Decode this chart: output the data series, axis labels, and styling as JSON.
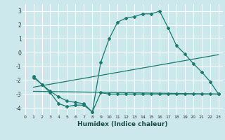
{
  "xlabel": "Humidex (Indice chaleur)",
  "bg_color": "#cce8ec",
  "grid_color": "#ffffff",
  "line_color": "#1a7a6e",
  "x_ticks": [
    0,
    1,
    2,
    3,
    4,
    5,
    6,
    7,
    8,
    9,
    10,
    11,
    12,
    13,
    14,
    15,
    16,
    17,
    18,
    19,
    20,
    21,
    22,
    23
  ],
  "ylim": [
    -4.5,
    3.5
  ],
  "xlim": [
    -0.3,
    23.5
  ],
  "yticks": [
    -4,
    -3,
    -2,
    -1,
    0,
    1,
    2,
    3
  ],
  "line1_x": [
    1,
    2,
    3,
    4,
    5,
    6,
    7,
    8,
    9,
    10,
    11,
    12,
    13,
    14,
    15,
    16,
    17,
    18,
    19,
    20,
    21,
    22,
    23
  ],
  "line1_y": [
    -1.7,
    -2.3,
    -2.8,
    -3.2,
    -3.5,
    -3.6,
    -3.7,
    -4.3,
    -0.7,
    1.0,
    2.2,
    2.5,
    2.6,
    2.8,
    2.8,
    3.0,
    1.8,
    0.5,
    -0.1,
    -0.8,
    -1.4,
    -2.1,
    -3.0
  ],
  "line2_x": [
    1,
    23
  ],
  "line2_y": [
    -2.5,
    -0.15
  ],
  "line3_x": [
    1,
    23
  ],
  "line3_y": [
    -2.8,
    -3.0
  ],
  "line4_x": [
    1,
    2,
    3,
    4,
    5,
    6,
    7,
    8,
    9,
    10,
    11,
    12,
    13,
    14,
    15,
    16,
    17,
    18,
    19,
    20,
    21,
    22,
    23
  ],
  "line4_y": [
    -1.8,
    -2.3,
    -2.9,
    -3.7,
    -3.9,
    -3.8,
    -3.8,
    -4.3,
    -2.9,
    -3.0,
    -3.0,
    -3.0,
    -3.0,
    -3.0,
    -3.0,
    -3.0,
    -3.0,
    -3.0,
    -3.0,
    -3.0,
    -3.0,
    -3.0,
    -3.0
  ]
}
